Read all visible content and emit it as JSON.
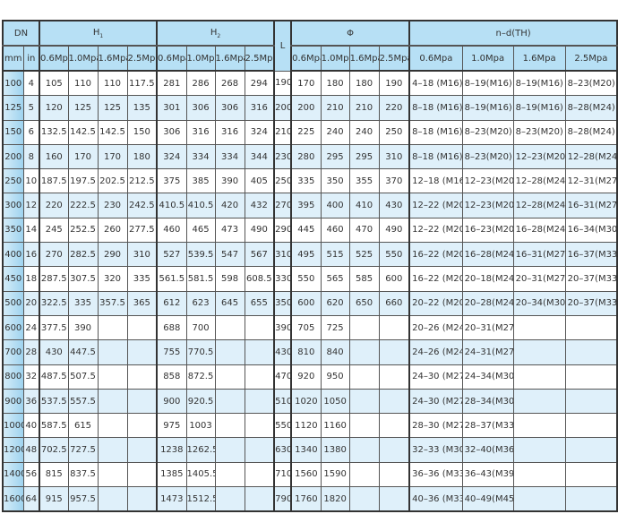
{
  "header": {
    "dn": "DN",
    "h1": "H",
    "h1_sub": "1",
    "h2": "H",
    "h2_sub": "2",
    "l": "L",
    "phi": "Φ",
    "nd": "n–d(TH)",
    "mm": "mm",
    "in": "in",
    "pressures": [
      "0.6Mpa",
      "1.0Mpa",
      "1.6Mpa",
      "2.5Mpa"
    ]
  },
  "colors": {
    "header_bg": "#b7e0f5",
    "alt_row_bg": "#dff0fa",
    "mm_col_bg": "#9fd3ef",
    "border": "#333333"
  },
  "rows": [
    [
      "100",
      "4",
      "105",
      "110",
      "110",
      "117.5",
      "281",
      "286",
      "268",
      "294",
      "190",
      "170",
      "180",
      "180",
      "190",
      "4–18 (M16)",
      "8–19(M16)",
      "8–19(M16)",
      "8–23(M20)"
    ],
    [
      "125",
      "5",
      "120",
      "125",
      "125",
      "135",
      "301",
      "306",
      "306",
      "316",
      "200",
      "200",
      "210",
      "210",
      "220",
      "8–18 (M16)",
      "8–19(M16)",
      "8–19(M16)",
      "8–28(M24)"
    ],
    [
      "150",
      "6",
      "132.5",
      "142.5",
      "142.5",
      "150",
      "306",
      "316",
      "316",
      "324",
      "210",
      "225",
      "240",
      "240",
      "250",
      "8–18 (M16)",
      "8–23(M20)",
      "8–23(M20)",
      "8–28(M24)"
    ],
    [
      "200",
      "8",
      "160",
      "170",
      "170",
      "180",
      "324",
      "334",
      "334",
      "344",
      "230",
      "280",
      "295",
      "295",
      "310",
      "8–18 (M16)",
      "8–23(M20)",
      "12–23(M20)",
      "12–28(M24)"
    ],
    [
      "250",
      "10",
      "187.5",
      "197.5",
      "202.5",
      "212.5",
      "375",
      "385",
      "390",
      "405",
      "250",
      "335",
      "350",
      "355",
      "370",
      "12–18 (M16)",
      "12–23(M20)",
      "12–28(M24)",
      "12–31(M27)"
    ],
    [
      "300",
      "12",
      "220",
      "222.5",
      "230",
      "242.5",
      "410.5",
      "410.5",
      "420",
      "432",
      "270",
      "395",
      "400",
      "410",
      "430",
      "12–22 (M20)",
      "12–23(M20)",
      "12–28(M24)",
      "16–31(M27)"
    ],
    [
      "350",
      "14",
      "245",
      "252.5",
      "260",
      "277.5",
      "460",
      "465",
      "473",
      "490",
      "290",
      "445",
      "460",
      "470",
      "490",
      "12–22 (M20)",
      "16–23(M20)",
      "16–28(M24)",
      "16–34(M30)"
    ],
    [
      "400",
      "16",
      "270",
      "282.5",
      "290",
      "310",
      "527",
      "539.5",
      "547",
      "567",
      "310",
      "495",
      "515",
      "525",
      "550",
      "16–22 (M20)",
      "16–28(M24)",
      "16–31(M27)",
      "16–37(M33)"
    ],
    [
      "450",
      "18",
      "287.5",
      "307.5",
      "320",
      "335",
      "561.5",
      "581.5",
      "598",
      "608.5",
      "330",
      "550",
      "565",
      "585",
      "600",
      "16–22 (M20)",
      "20–18(M24)",
      "20–31(M27)",
      "20–37(M33)"
    ],
    [
      "500",
      "20",
      "322.5",
      "335",
      "357.5",
      "365",
      "612",
      "623",
      "645",
      "655",
      "350",
      "600",
      "620",
      "650",
      "660",
      "20–22 (M20)",
      "20–28(M24)",
      "20–34(M30)",
      "20–37(M33)"
    ],
    [
      "600",
      "24",
      "377.5",
      "390",
      "",
      "",
      "688",
      "700",
      "",
      "",
      "390",
      "705",
      "725",
      "",
      "",
      "20–26 (M24)",
      "20–31(M27)",
      "",
      ""
    ],
    [
      "700",
      "28",
      "430",
      "447.5",
      "",
      "",
      "755",
      "770.5",
      "",
      "",
      "430",
      "810",
      "840",
      "",
      "",
      "24–26 (M24)",
      "24–31(M27)",
      "",
      ""
    ],
    [
      "800",
      "32",
      "487.5",
      "507.5",
      "",
      "",
      "858",
      "872.5",
      "",
      "",
      "470",
      "920",
      "950",
      "",
      "",
      "24–30 (M27)",
      "24–34(M30)",
      "",
      ""
    ],
    [
      "900",
      "36",
      "537.5",
      "557.5",
      "",
      "",
      "900",
      "920.5",
      "",
      "",
      "510",
      "1020",
      "1050",
      "",
      "",
      "24–30 (M27)",
      "28–34(M30)",
      "",
      ""
    ],
    [
      "1000",
      "40",
      "587.5",
      "615",
      "",
      "",
      "975",
      "1003",
      "",
      "",
      "550",
      "1120",
      "1160",
      "",
      "",
      "28–30 (M27)",
      "28–37(M33)",
      "",
      ""
    ],
    [
      "1200",
      "48",
      "702.5",
      "727.5",
      "",
      "",
      "1238",
      "1262.5",
      "",
      "",
      "630",
      "1340",
      "1380",
      "",
      "",
      "32–33 (M30)",
      "32–40(M36)",
      "",
      ""
    ],
    [
      "1400",
      "56",
      "815",
      "837.5",
      "",
      "",
      "1385",
      "1405.5",
      "",
      "",
      "710",
      "1560",
      "1590",
      "",
      "",
      "36–36 (M33)",
      "36–43(M39)",
      "",
      ""
    ],
    [
      "1600",
      "64",
      "915",
      "957.5",
      "",
      "",
      "1473",
      "1512.5",
      "",
      "",
      "790",
      "1760",
      "1820",
      "",
      "",
      "40–36 (M33)",
      "40–49(M45)",
      "",
      ""
    ]
  ]
}
